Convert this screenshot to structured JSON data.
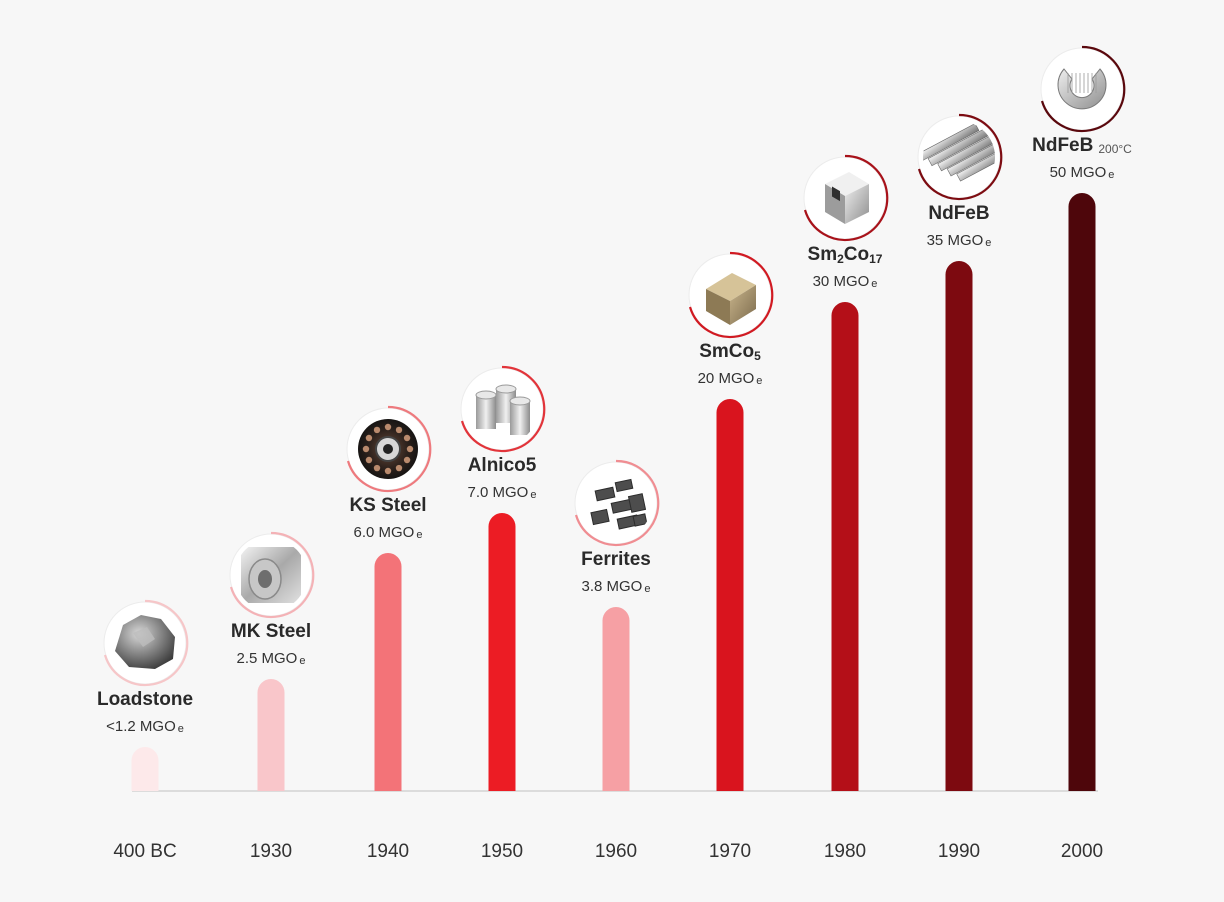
{
  "chart_data": {
    "type": "bar",
    "categories": [
      "400 BC",
      "1930",
      "1940",
      "1950",
      "1960",
      "1970",
      "1980",
      "1990",
      "2000"
    ],
    "values": [
      1.2,
      2.5,
      6.0,
      7.0,
      3.8,
      20,
      30,
      35,
      50
    ],
    "title": "",
    "xlabel": "",
    "ylabel": "",
    "grid": false,
    "legend": "none",
    "items": [
      {
        "category": "400 BC",
        "name": "Loadstone",
        "name_sub": "",
        "name_tail": "",
        "name_suffix": "",
        "value_label": "<1.2 MGO",
        "unit_sub": "e",
        "color": "#fde9ea",
        "icon": "loadstone-rock-icon",
        "icon_ring": "#f6c6c8"
      },
      {
        "category": "1930",
        "name": "MK Steel",
        "name_sub": "",
        "name_tail": "",
        "name_suffix": "",
        "value_label": "2.5 MGO",
        "unit_sub": "e",
        "color": "#f9c6ca",
        "icon": "steel-coil-icon",
        "icon_ring": "#f4b2b6"
      },
      {
        "category": "1940",
        "name": "KS Steel",
        "name_sub": "",
        "name_tail": "",
        "name_suffix": "",
        "value_label": "6.0 MGO",
        "unit_sub": "e",
        "color": "#f37378",
        "icon": "ring-magnet-icon",
        "icon_ring": "#ee7a7e"
      },
      {
        "category": "1950",
        "name": "Alnico5",
        "name_sub": "",
        "name_tail": "",
        "name_suffix": "",
        "value_label": "7.0 MGO",
        "unit_sub": "e",
        "color": "#ec1c24",
        "icon": "cylinder-magnets-icon",
        "icon_ring": "#e2343a"
      },
      {
        "category": "1960",
        "name": "Ferrites",
        "name_sub": "",
        "name_tail": "",
        "name_suffix": "",
        "value_label": "3.8 MGO",
        "unit_sub": "e",
        "color": "#f6a0a4",
        "icon": "ferrite-pieces-icon",
        "icon_ring": "#f08d92"
      },
      {
        "category": "1970",
        "name": "SmCo",
        "name_sub": "5",
        "name_tail": "",
        "name_suffix": "",
        "value_label": "20 MGO",
        "unit_sub": "e",
        "color": "#d9141e",
        "icon": "cube-magnet-icon",
        "icon_ring": "#d11a22"
      },
      {
        "category": "1980",
        "name": "Sm",
        "name_sub": "2",
        "name_tail": "Co",
        "name_tail_sub": "17",
        "name_suffix": "",
        "value_label": "30 MGO",
        "unit_sub": "e",
        "color": "#b40f18",
        "icon": "block-magnet-icon",
        "icon_ring": "#a8121a"
      },
      {
        "category": "1990",
        "name": "NdFeB",
        "name_sub": "",
        "name_tail": "",
        "name_suffix": "",
        "value_label": "35 MGO",
        "unit_sub": "e",
        "color": "#7d0a10",
        "icon": "bar-magnets-icon",
        "icon_ring": "#7d0c12"
      },
      {
        "category": "2000",
        "name": "NdFeB",
        "name_sub": "",
        "name_tail": "",
        "name_suffix": "200°C",
        "value_label": "50 MGO",
        "unit_sub": "e",
        "color": "#4e060b",
        "icon": "arc-magnet-icon",
        "icon_ring": "#5a080d"
      }
    ]
  }
}
